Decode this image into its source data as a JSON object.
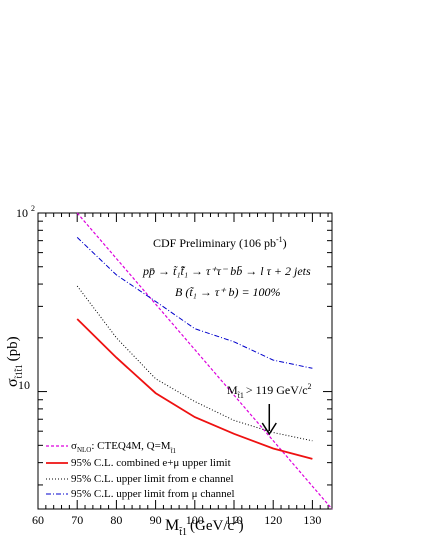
{
  "chart_data": {
    "type": "line",
    "title": "",
    "xlabel": "M",
    "xlabel_sub": "t̃1",
    "xlabel_units": "(GeV/c",
    "xlabel_units_sup": "2",
    "xlabel_units_close": ")",
    "ylabel": "σ",
    "ylabel_sub": "t̃1t̃̄1",
    "ylabel_units": "(pb)",
    "xlim": [
      60,
      135
    ],
    "ylim": [
      2.2,
      100
    ],
    "yscale": "log",
    "xticks": [
      60,
      70,
      80,
      90,
      100,
      110,
      120,
      130
    ],
    "xtick_labels": [
      "60",
      "70",
      "80",
      "90",
      "100",
      "110",
      "120",
      "130"
    ],
    "ytick_labels": {
      "t10": "10",
      "t100_base": "10",
      "t100_exp": "2"
    },
    "annotations": {
      "prelim": "CDF Preliminary (106 pb",
      "prelim_sup": "-1",
      "prelim_close": ")",
      "process": "pp̄ → t̃₁t̄̃₁ → τ⁺τ⁻ bb̄ → l τ + 2 jets",
      "branching": "B (t̃₁ → τ⁺ b) = 100%",
      "limit_main": "M",
      "limit_sub": "t̃1",
      "limit_text": "> 119 GeV/c",
      "limit_sup": "2"
    },
    "limit_arrow_x": 119,
    "series": [
      {
        "name": "σNLO: CTEQ4M, Q=Mt̃1",
        "legend_main": "σ",
        "legend_sub": "NLO",
        "legend_rest": ": CTEQ4M, Q=M",
        "legend_sub2": "t̃1",
        "color": "#dd00dd",
        "dash": "3,2",
        "x": [
          70,
          135
        ],
        "y": [
          100,
          2.2
        ]
      },
      {
        "name": "95% C.L. combined e+μ upper limit",
        "color": "#ee1111",
        "dash": "",
        "x": [
          70,
          80,
          90,
          100,
          110,
          120,
          130
        ],
        "y": [
          25.5,
          15.5,
          9.8,
          7.2,
          5.8,
          4.8,
          4.2
        ]
      },
      {
        "name": "95% C.L. upper limit from e channel",
        "color": "#000000",
        "dash": "1,2",
        "x": [
          70,
          80,
          90,
          100,
          110,
          120,
          130
        ],
        "y": [
          39,
          20,
          11.8,
          8.8,
          6.9,
          5.9,
          5.3
        ]
      },
      {
        "name": "95% C.L. upper limit from μ channel",
        "color": "#0000cc",
        "dash": "5,2,1,2",
        "x": [
          70,
          80,
          90,
          100,
          110,
          120,
          130
        ],
        "y": [
          73,
          45,
          32,
          22.5,
          19,
          15,
          13.5
        ]
      }
    ],
    "legend_position": "bottom-left"
  }
}
